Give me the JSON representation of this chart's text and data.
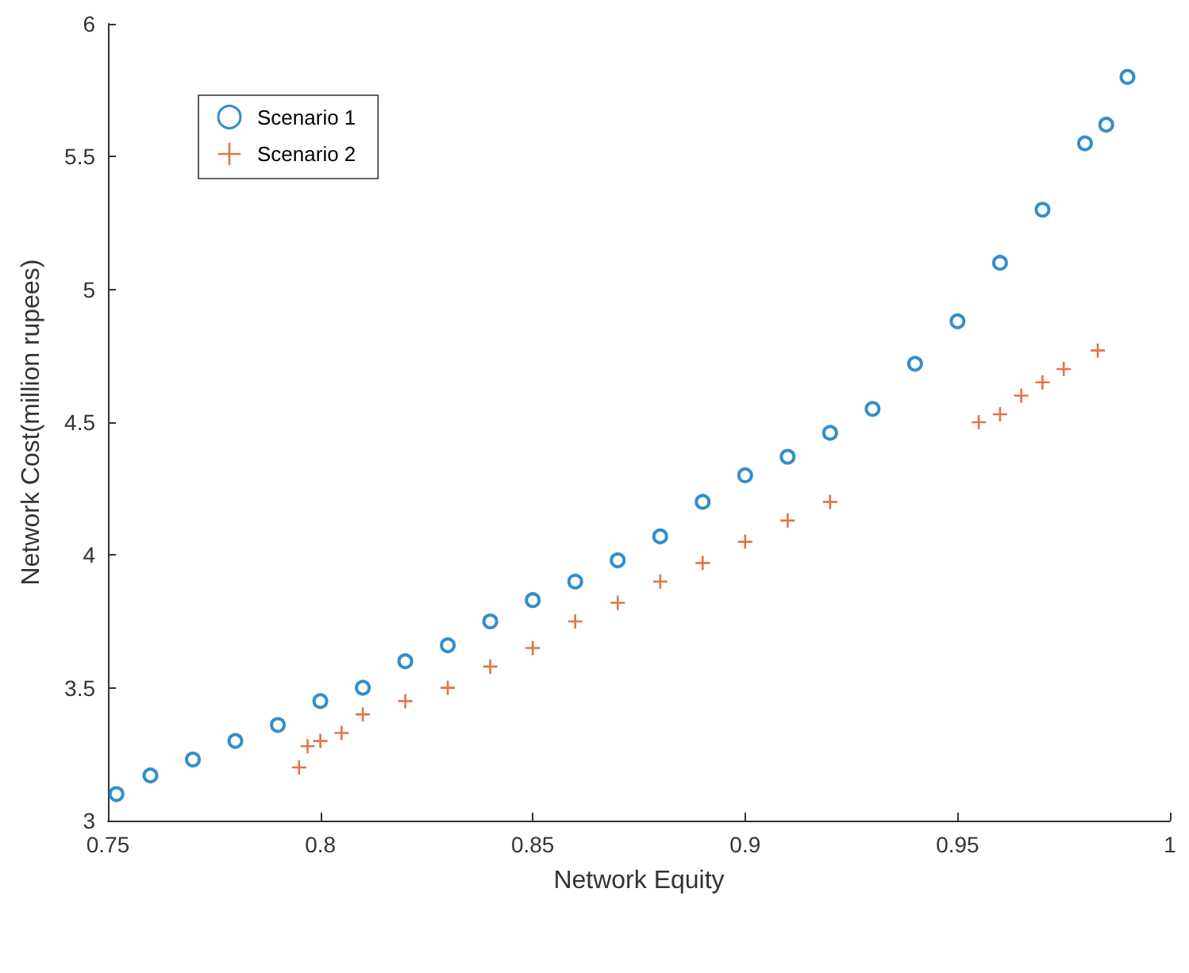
{
  "chart_data": {
    "type": "scatter",
    "xlabel": "Network Equity",
    "ylabel": "Network Cost(million rupees)",
    "xlim": [
      0.75,
      1
    ],
    "xticks": [
      0.75,
      0.8,
      0.85,
      0.9,
      0.95,
      1
    ],
    "ylim": [
      3,
      6
    ],
    "yticks": [
      3,
      3.5,
      4,
      4.5,
      5,
      5.5,
      6
    ],
    "grid": false,
    "legend": "top left",
    "series": [
      {
        "name": "Scenario 1",
        "color": "#0072bd",
        "marker": "circle",
        "x": [
          0.752,
          0.76,
          0.77,
          0.78,
          0.79,
          0.8,
          0.81,
          0.82,
          0.83,
          0.84,
          0.85,
          0.86,
          0.87,
          0.88,
          0.89,
          0.9,
          0.91,
          0.92,
          0.93,
          0.94,
          0.95,
          0.96,
          0.97,
          0.98,
          0.985,
          0.99
        ],
        "values": [
          3.1,
          3.17,
          3.23,
          3.3,
          3.36,
          3.45,
          3.5,
          3.6,
          3.66,
          3.75,
          3.83,
          3.9,
          3.98,
          4.07,
          4.2,
          4.3,
          4.37,
          4.46,
          4.55,
          4.72,
          4.88,
          5.1,
          5.3,
          5.55,
          5.62,
          5.8
        ]
      },
      {
        "name": "Scenario 2",
        "color": "#d95319",
        "marker": "cross",
        "x": [
          0.795,
          0.797,
          0.8,
          0.805,
          0.81,
          0.82,
          0.83,
          0.84,
          0.85,
          0.86,
          0.87,
          0.88,
          0.89,
          0.9,
          0.91,
          0.92,
          0.955,
          0.96,
          0.965,
          0.97,
          0.975,
          0.983
        ],
        "values": [
          3.2,
          3.28,
          3.3,
          3.33,
          3.4,
          3.45,
          3.5,
          3.58,
          3.65,
          3.75,
          3.82,
          3.9,
          3.97,
          4.05,
          4.13,
          4.2,
          4.5,
          4.53,
          4.6,
          4.65,
          4.7,
          4.77
        ]
      }
    ]
  }
}
